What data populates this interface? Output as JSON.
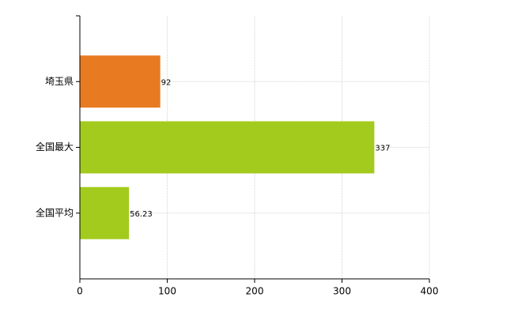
{
  "chart_data": {
    "type": "bar",
    "orientation": "horizontal",
    "categories": [
      "埼玉県",
      "全国最大",
      "全国平均"
    ],
    "values": [
      92,
      337,
      56.23
    ],
    "colors": [
      "#e87b22",
      "#a3cb1e",
      "#a3cb1e"
    ],
    "xlim": [
      0,
      400
    ],
    "xticks": [
      0,
      100,
      200,
      300,
      400
    ],
    "grid": true
  }
}
